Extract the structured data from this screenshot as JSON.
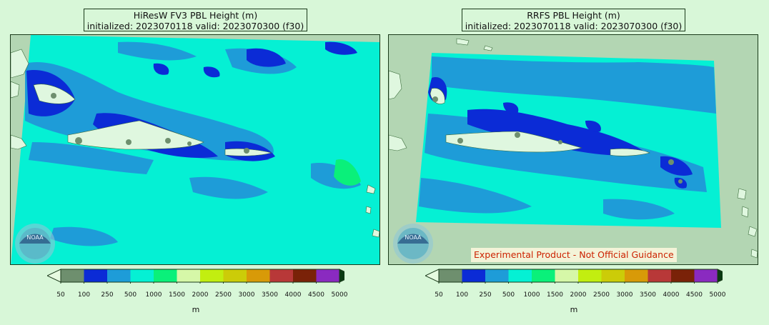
{
  "panels": [
    {
      "title_line1": "HiResW FV3 PBL Height (m)",
      "title_line2": "initialized: 2023070118 valid: 2023070300 (f30)"
    },
    {
      "title_line1": "RRFS PBL Height (m)",
      "title_line2": "initialized: 2023070118 valid: 2023070300 (f30)",
      "disclaimer": "Experimental Product - Not Official Guidance"
    }
  ],
  "colorbar": {
    "unit": "m",
    "ticks": [
      "50",
      "100",
      "250",
      "500",
      "1000",
      "1500",
      "2000",
      "2500",
      "3000",
      "3500",
      "4000",
      "4500",
      "5000"
    ],
    "colors": [
      "#6e8f6e",
      "#0b2bd6",
      "#1e9cd8",
      "#05f0d4",
      "#0af07a",
      "#d6f7a8",
      "#c2ee10",
      "#cccc08",
      "#d89a08",
      "#b83838",
      "#7a2208",
      "#8a2ac0"
    ],
    "under_color": "#e6fbe0",
    "over_color": "#0a3a12"
  },
  "map": {
    "ocean_outside": "#b3d6b3",
    "land": "#dff7df",
    "logo_text": "NOAA"
  }
}
